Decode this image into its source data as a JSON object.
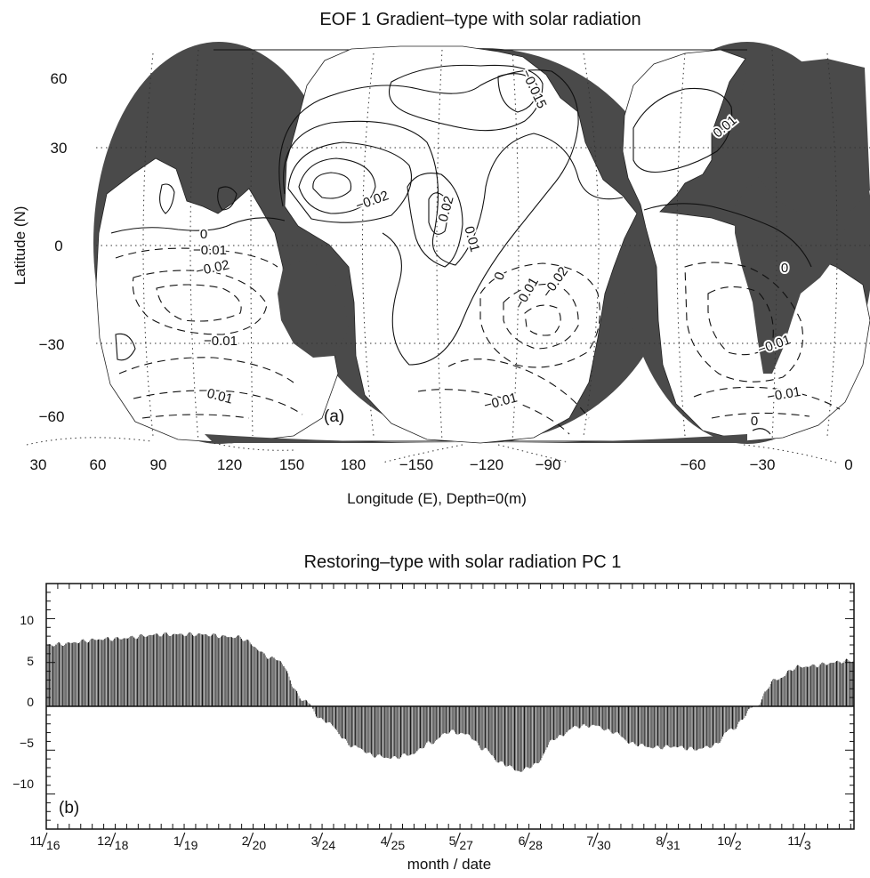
{
  "colors": {
    "land": "#4a4a4a",
    "ink": "#111111",
    "paper": "#ffffff"
  },
  "chart_data": [
    {
      "panel": "(a)",
      "type": "heatmap",
      "title": "EOF 1  Gradient–type  with  solar  radiation",
      "xlabel": "Longitude (E),  Depth=0(m)",
      "ylabel": "Latitude (N)",
      "x_ticks": [
        "30",
        "60",
        "90",
        "120",
        "150",
        "180",
        "−150",
        "−120",
        "−90",
        "−60",
        "−30",
        "0"
      ],
      "y_ticks": [
        "60",
        "30",
        "0",
        "−30",
        "−60"
      ],
      "contour_labels": [
        {
          "text": "−0.015",
          "lon": -162,
          "lat": 38
        },
        {
          "text": "−0.02",
          "lon": 163,
          "lat": 16
        },
        {
          "text": "0.02",
          "lon": -172,
          "lat": 12
        },
        {
          "text": "0.01",
          "lon": -162,
          "lat": 2
        },
        {
          "text": "0",
          "lon": -150,
          "lat": -11
        },
        {
          "text": "−0.01",
          "lon": -135,
          "lat": -22
        },
        {
          "text": "−0.02",
          "lon": -120,
          "lat": -18
        },
        {
          "text": "−0.01",
          "lon": -135,
          "lat": -58
        },
        {
          "text": "0",
          "lon": 67,
          "lat": 2
        },
        {
          "text": "−0.01",
          "lon": 63,
          "lat": -3
        },
        {
          "text": "−0.02",
          "lon": 62,
          "lat": -10
        },
        {
          "text": "−0.01",
          "lon": 68,
          "lat": -31
        },
        {
          "text": "0.01",
          "lon": 70,
          "lat": -52
        },
        {
          "text": "0.01",
          "lon": -60,
          "lat": 36
        },
        {
          "text": "0",
          "lon": -22,
          "lat": -15
        },
        {
          "text": "−0.01",
          "lon": -28,
          "lat": -31
        },
        {
          "text": "−0.01",
          "lon": -22,
          "lat": -56
        },
        {
          "text": "0",
          "lon": -30,
          "lat": -69
        }
      ]
    },
    {
      "panel": "(b)",
      "type": "bar",
      "title": "Restoring–type  with  solar  radiation  PC  1",
      "xlabel": "month / date",
      "ylabel": "",
      "ylim": [
        -14,
        14
      ],
      "y_ticks": [
        "10",
        "5",
        "0",
        "−5",
        "−10"
      ],
      "x_ticks": [
        {
          "num": "11",
          "den": "16"
        },
        {
          "num": "12",
          "den": "18"
        },
        {
          "num": "1",
          "den": "19"
        },
        {
          "num": "2",
          "den": "20"
        },
        {
          "num": "3",
          "den": "24"
        },
        {
          "num": "4",
          "den": "25"
        },
        {
          "num": "5",
          "den": "27"
        },
        {
          "num": "6",
          "den": "28"
        },
        {
          "num": "7",
          "den": "30"
        },
        {
          "num": "8",
          "den": "31"
        },
        {
          "num": "10",
          "den": "2"
        },
        {
          "num": "11",
          "den": "3"
        }
      ],
      "x_tick_steps": [
        0,
        63,
        127,
        190,
        254,
        318,
        381,
        445,
        508,
        572,
        635,
        699
      ],
      "x_range": [
        0,
        745
      ],
      "profile": [
        [
          0,
          7
        ],
        [
          60,
          7.7
        ],
        [
          110,
          8.2
        ],
        [
          140,
          8.2
        ],
        [
          175,
          7.9
        ],
        [
          212,
          5.4
        ],
        [
          238,
          0.7
        ],
        [
          255,
          -1.6
        ],
        [
          285,
          -4.6
        ],
        [
          302,
          -5.6
        ],
        [
          318,
          -5.9
        ],
        [
          336,
          -5.5
        ],
        [
          354,
          -4.2
        ],
        [
          372,
          -2.9
        ],
        [
          388,
          -3.2
        ],
        [
          403,
          -4.8
        ],
        [
          420,
          -6.5
        ],
        [
          437,
          -7.4
        ],
        [
          450,
          -6.7
        ],
        [
          470,
          -3.6
        ],
        [
          490,
          -2.3
        ],
        [
          506,
          -2.2
        ],
        [
          522,
          -2.9
        ],
        [
          542,
          -4.3
        ],
        [
          560,
          -4.7
        ],
        [
          578,
          -4.6
        ],
        [
          600,
          -4.9
        ],
        [
          615,
          -4.5
        ],
        [
          632,
          -2.6
        ],
        [
          654,
          0.0
        ],
        [
          672,
          3.0
        ],
        [
          694,
          4.5
        ],
        [
          745,
          5.2
        ]
      ]
    }
  ]
}
